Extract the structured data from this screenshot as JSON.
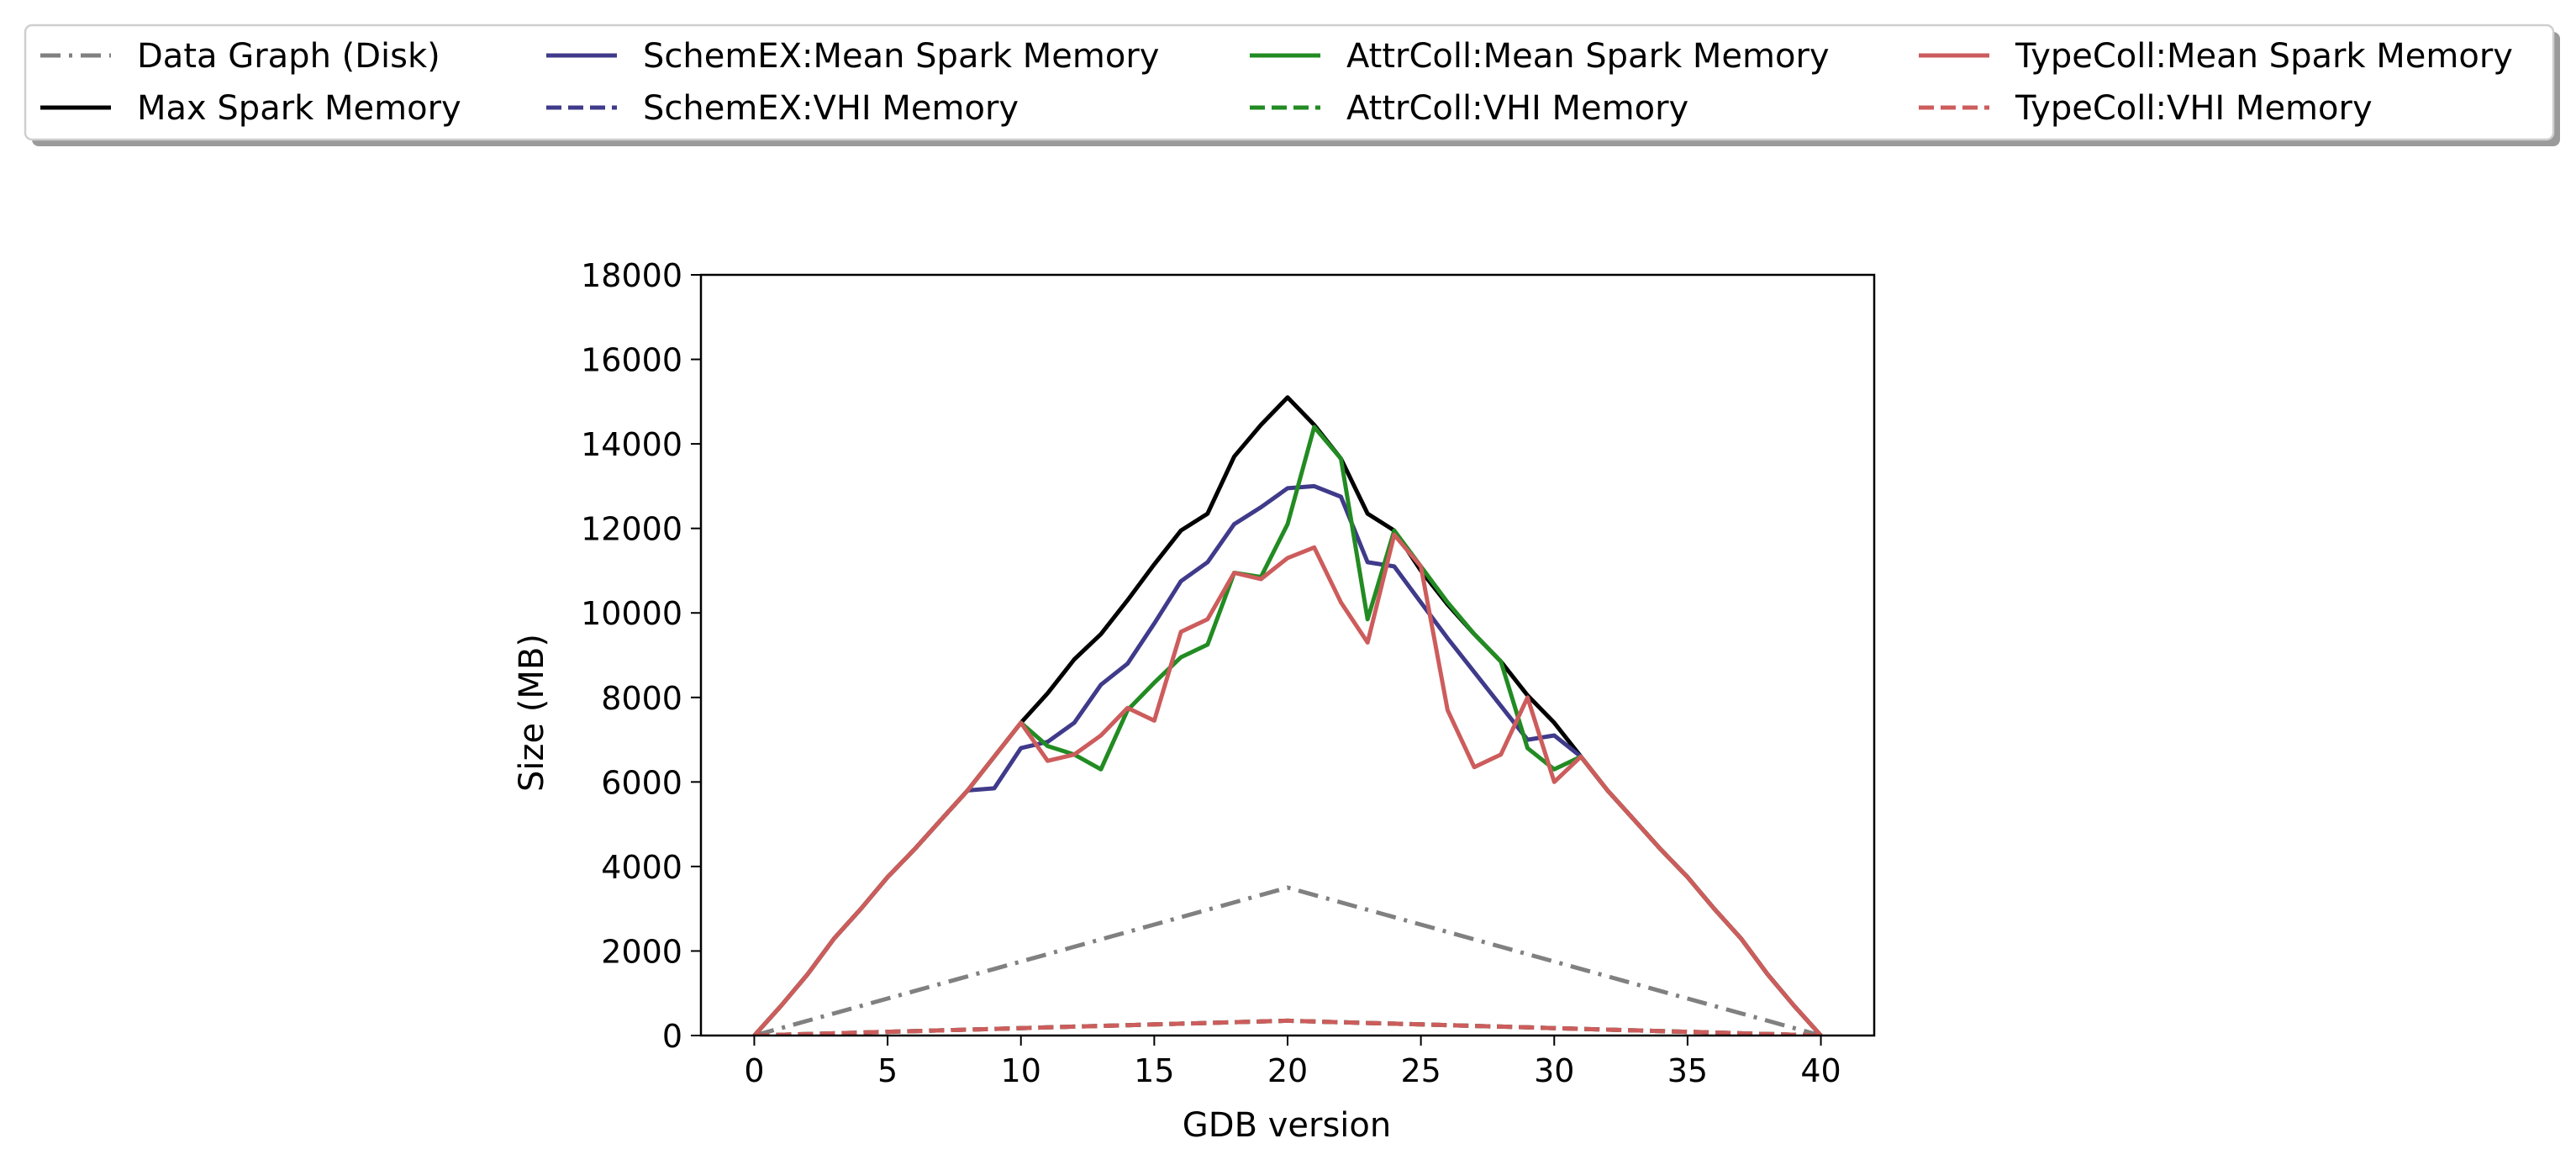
{
  "chart_data": {
    "type": "line",
    "title": "",
    "xlabel": "GDB version",
    "ylabel": "Size (MB)",
    "xlim": [
      -2,
      42
    ],
    "ylim": [
      0,
      18000
    ],
    "xticks": [
      0,
      5,
      10,
      15,
      20,
      25,
      30,
      35,
      40
    ],
    "yticks": [
      0,
      2000,
      4000,
      6000,
      8000,
      10000,
      12000,
      14000,
      16000,
      18000
    ],
    "grid": false,
    "legend_placement": "top, outside plot, 4 columns",
    "x": [
      0,
      1,
      2,
      3,
      4,
      5,
      6,
      7,
      8,
      9,
      10,
      11,
      12,
      13,
      14,
      15,
      16,
      17,
      18,
      19,
      20,
      21,
      22,
      23,
      24,
      25,
      26,
      27,
      28,
      29,
      30,
      31,
      32,
      33,
      34,
      35,
      36,
      37,
      38,
      39,
      40
    ],
    "series": [
      {
        "name": "Data Graph (Disk)",
        "color": "#808080",
        "style": "dashdot",
        "values": [
          0,
          175,
          350,
          525,
          700,
          875,
          1050,
          1225,
          1400,
          1575,
          1750,
          1925,
          2100,
          2275,
          2450,
          2625,
          2800,
          2975,
          3150,
          3325,
          3500,
          3325,
          3150,
          2975,
          2800,
          2625,
          2450,
          2275,
          2100,
          1925,
          1750,
          1575,
          1400,
          1225,
          1050,
          875,
          700,
          525,
          350,
          175,
          0
        ]
      },
      {
        "name": "Max Spark Memory",
        "color": "#000000",
        "style": "solid",
        "values": [
          0,
          700,
          1450,
          2300,
          3000,
          3750,
          4400,
          5100,
          5800,
          6600,
          7400,
          8100,
          8900,
          9500,
          10300,
          11150,
          11950,
          12350,
          13700,
          14450,
          15100,
          14450,
          13650,
          12350,
          11950,
          11000,
          10200,
          9500,
          8850,
          8050,
          7400,
          6600,
          5800,
          5100,
          4400,
          3750,
          3000,
          2300,
          1450,
          700,
          0
        ]
      },
      {
        "name": "SchemEX:Mean Spark Memory",
        "color": "#3f3a8a",
        "style": "solid",
        "values": [
          0,
          700,
          1450,
          2300,
          3000,
          3750,
          4400,
          5100,
          5800,
          5850,
          6800,
          6950,
          7400,
          8300,
          8800,
          9750,
          10750,
          11200,
          12100,
          12500,
          12950,
          13000,
          12750,
          11200,
          11100,
          10250,
          9400,
          8600,
          7800,
          7000,
          7100,
          6600,
          5800,
          5100,
          4400,
          3750,
          3000,
          2300,
          1450,
          700,
          0
        ]
      },
      {
        "name": "SchemEX:VHI Memory",
        "color": "#3f3a8a",
        "style": "dashed",
        "values": [
          0,
          17,
          35,
          52,
          70,
          87,
          105,
          122,
          140,
          157,
          175,
          192,
          210,
          227,
          245,
          262,
          280,
          297,
          315,
          332,
          350,
          332,
          315,
          297,
          280,
          262,
          245,
          227,
          210,
          192,
          175,
          157,
          140,
          122,
          105,
          87,
          70,
          52,
          35,
          17,
          0
        ]
      },
      {
        "name": "AttrColl:Mean Spark Memory",
        "color": "#228b22",
        "style": "solid",
        "values": [
          0,
          700,
          1450,
          2300,
          3000,
          3750,
          4400,
          5100,
          5800,
          6600,
          7400,
          6850,
          6650,
          6300,
          7700,
          8350,
          8950,
          9250,
          10950,
          10850,
          12100,
          14400,
          13650,
          9850,
          11950,
          11100,
          10250,
          9500,
          8850,
          6800,
          6300,
          6600,
          5800,
          5100,
          4400,
          3750,
          3000,
          2300,
          1450,
          700,
          0
        ]
      },
      {
        "name": "AttrColl:VHI Memory",
        "color": "#228b22",
        "style": "dashed",
        "values": [
          0,
          17,
          35,
          52,
          70,
          87,
          105,
          122,
          140,
          157,
          175,
          192,
          210,
          227,
          245,
          262,
          280,
          297,
          315,
          332,
          350,
          332,
          315,
          297,
          280,
          262,
          245,
          227,
          210,
          192,
          175,
          157,
          140,
          122,
          105,
          87,
          70,
          52,
          35,
          17,
          0
        ]
      },
      {
        "name": "TypeColl:Mean Spark Memory",
        "color": "#cd5c5c",
        "style": "solid",
        "values": [
          0,
          700,
          1450,
          2300,
          3000,
          3750,
          4400,
          5100,
          5800,
          6600,
          7400,
          6500,
          6650,
          7100,
          7750,
          7450,
          9550,
          9850,
          10950,
          10800,
          11300,
          11550,
          10250,
          9300,
          11850,
          11100,
          7700,
          6350,
          6650,
          8000,
          6000,
          6600,
          5800,
          5100,
          4400,
          3750,
          3000,
          2300,
          1450,
          700,
          0
        ]
      },
      {
        "name": "TypeColl:VHI Memory",
        "color": "#cd5c5c",
        "style": "dashed",
        "values": [
          0,
          17,
          35,
          52,
          70,
          87,
          105,
          122,
          140,
          157,
          175,
          192,
          210,
          227,
          245,
          262,
          280,
          297,
          315,
          332,
          350,
          332,
          315,
          297,
          280,
          262,
          245,
          227,
          210,
          192,
          175,
          157,
          140,
          122,
          105,
          87,
          70,
          52,
          35,
          17,
          0
        ]
      }
    ],
    "legend_order": [
      "Data Graph (Disk)",
      "Max Spark Memory",
      "SchemEX:Mean Spark Memory",
      "SchemEX:VHI Memory",
      "AttrColl:Mean Spark Memory",
      "AttrColl:VHI Memory",
      "TypeColl:Mean Spark Memory",
      "TypeColl:VHI Memory"
    ]
  }
}
